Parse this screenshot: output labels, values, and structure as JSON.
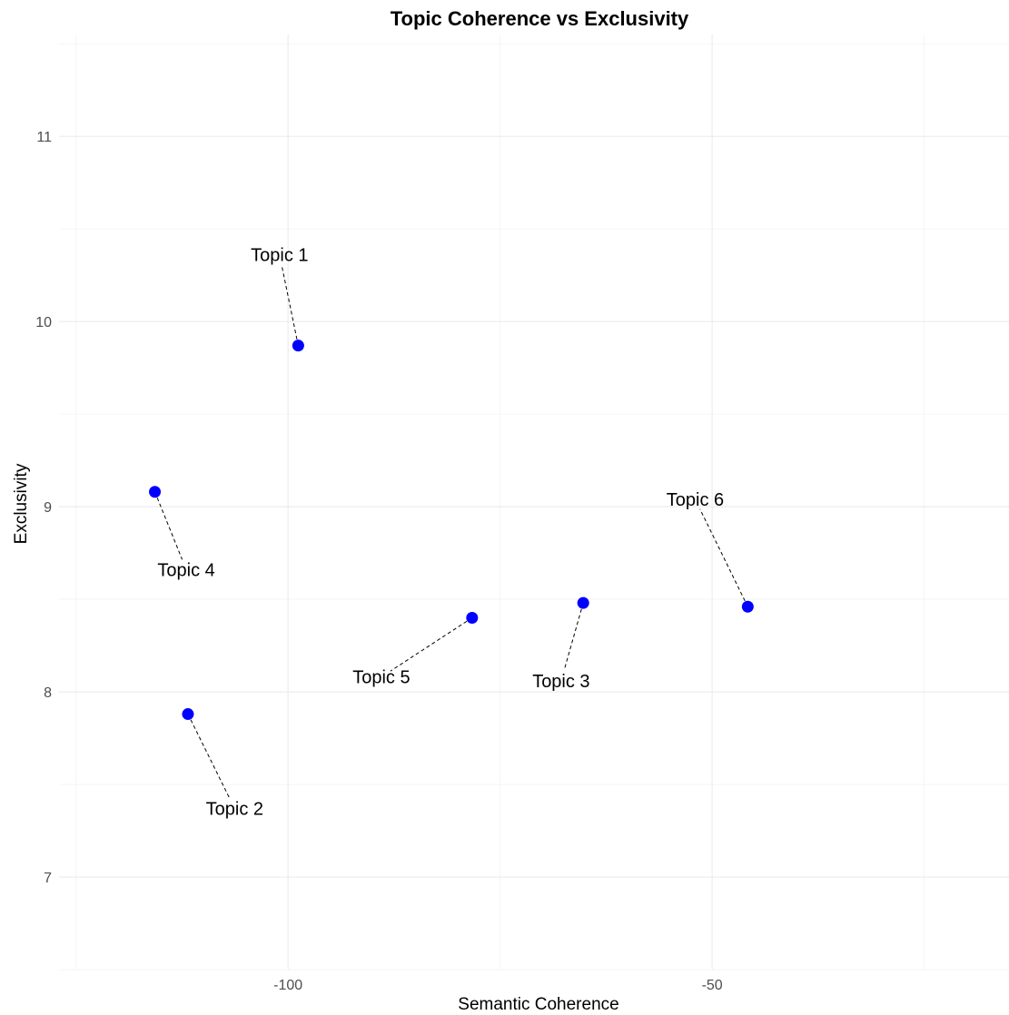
{
  "chart_data": {
    "type": "scatter",
    "title": "Topic Coherence vs Exclusivity",
    "xlabel": "Semantic Coherence",
    "ylabel": "Exclusivity",
    "xlim": [
      -127,
      -15
    ],
    "ylim": [
      6.5,
      11.55
    ],
    "xticks": [
      -100,
      -50
    ],
    "yticks": [
      7,
      8,
      9,
      10,
      11
    ],
    "grid": true,
    "point_color": "#0000ff",
    "points": [
      {
        "label": "Topic 1",
        "x": -98.8,
        "y": 9.87,
        "label_x": -101.0,
        "label_y": 10.36
      },
      {
        "label": "Topic 2",
        "x": -111.8,
        "y": 7.88,
        "label_x": -106.3,
        "label_y": 7.37
      },
      {
        "label": "Topic 3",
        "x": -65.2,
        "y": 8.48,
        "label_x": -67.8,
        "label_y": 8.06
      },
      {
        "label": "Topic 4",
        "x": -115.7,
        "y": 9.08,
        "label_x": -112.0,
        "label_y": 8.66
      },
      {
        "label": "Topic 5",
        "x": -78.3,
        "y": 8.4,
        "label_x": -89.0,
        "label_y": 8.08
      },
      {
        "label": "Topic 6",
        "x": -45.8,
        "y": 8.46,
        "label_x": -52.0,
        "label_y": 9.04
      }
    ]
  }
}
